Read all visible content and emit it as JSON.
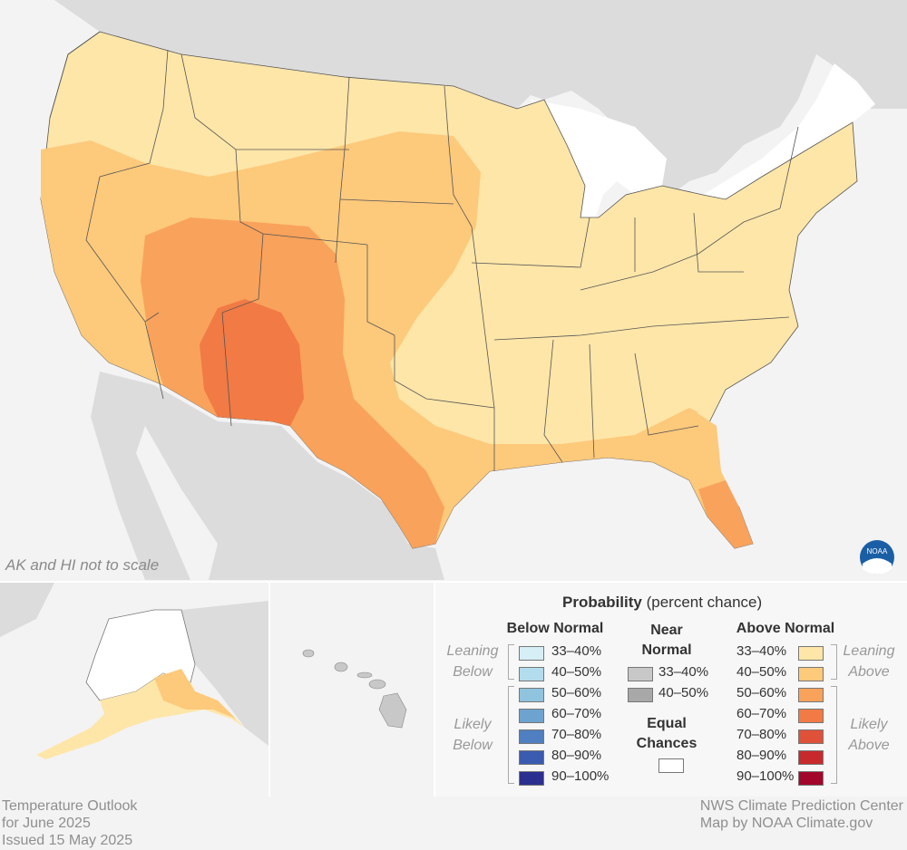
{
  "scale_note": "AK and HI not to scale",
  "footer_left": [
    "Temperature Outlook",
    "for June 2025",
    "Issued 15 May 2025"
  ],
  "footer_right": [
    "NWS Climate Prediction Center",
    "Map by NOAA Climate.gov"
  ],
  "legend": {
    "title_bold": "Probability",
    "title_rest": " (percent chance)",
    "below": {
      "header": "Below Normal",
      "leaning_label": [
        "Leaning",
        "Below"
      ],
      "likely_label": [
        "Likely",
        "Below"
      ],
      "items": [
        {
          "label": "33–40%",
          "color": "#d6eef6"
        },
        {
          "label": "40–50%",
          "color": "#b3dcec"
        },
        {
          "label": "50–60%",
          "color": "#8fc3de"
        },
        {
          "label": "60–70%",
          "color": "#6ea3cf"
        },
        {
          "label": "70–80%",
          "color": "#4f7fc0"
        },
        {
          "label": "80–90%",
          "color": "#3b5bb0"
        },
        {
          "label": "90–100%",
          "color": "#2b2f8f"
        }
      ]
    },
    "near": {
      "header": [
        "Near",
        "Normal"
      ],
      "items": [
        {
          "label": "33–40%",
          "color": "#c8c8c8"
        },
        {
          "label": "40–50%",
          "color": "#a8a8a8"
        }
      ]
    },
    "equal": {
      "header": [
        "Equal",
        "Chances"
      ],
      "color": "#ffffff"
    },
    "above": {
      "header": "Above Normal",
      "leaning_label": [
        "Leaning",
        "Above"
      ],
      "likely_label": [
        "Likely",
        "Above"
      ],
      "items": [
        {
          "label": "33–40%",
          "color": "#fee6a8"
        },
        {
          "label": "40–50%",
          "color": "#fdc97b"
        },
        {
          "label": "50–60%",
          "color": "#f9a25b"
        },
        {
          "label": "60–70%",
          "color": "#f17a45"
        },
        {
          "label": "70–80%",
          "color": "#e0513a"
        },
        {
          "label": "80–90%",
          "color": "#c72a2c"
        },
        {
          "label": "90–100%",
          "color": "#a3062b"
        }
      ]
    }
  },
  "map_colors": {
    "land_outside": "#dcdcdc",
    "water": "#f3f3f3",
    "state_lines": "#555555"
  }
}
